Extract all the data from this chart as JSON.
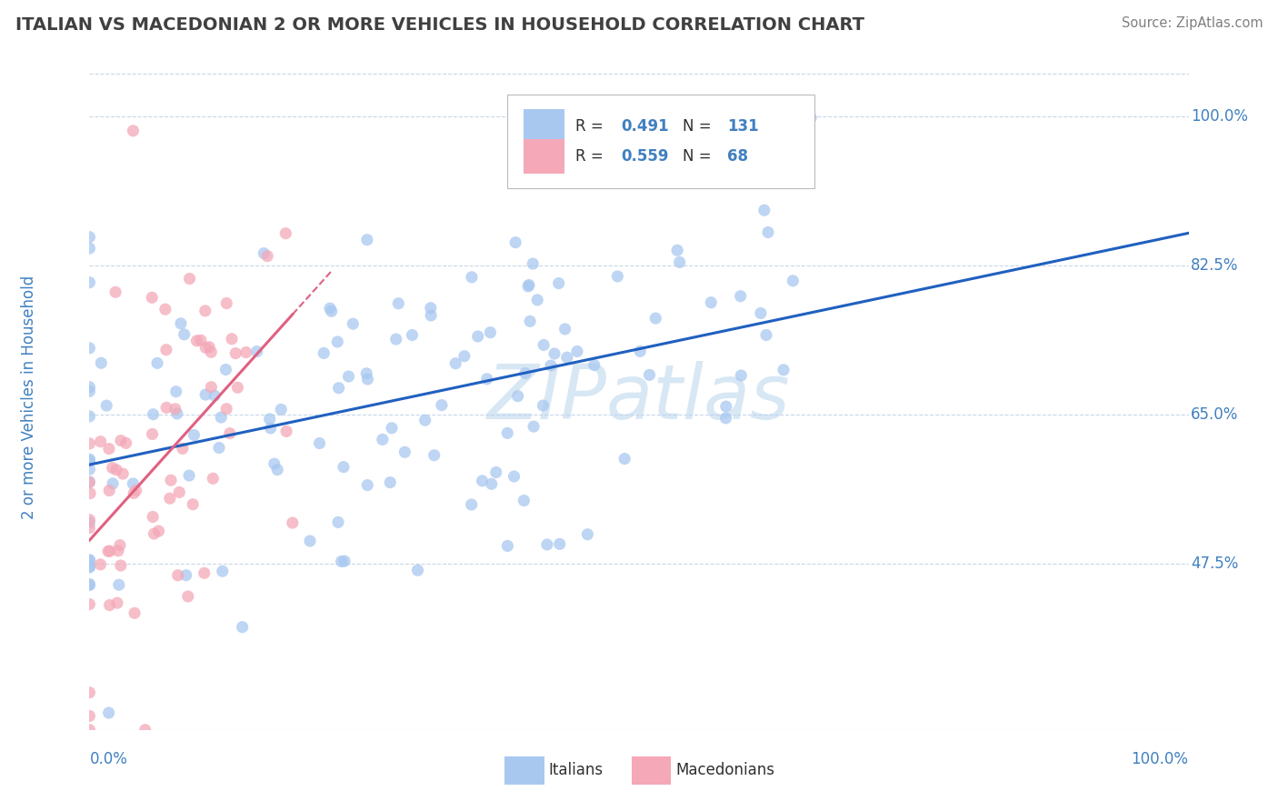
{
  "title": "ITALIAN VS MACEDONIAN 2 OR MORE VEHICLES IN HOUSEHOLD CORRELATION CHART",
  "source_text": "Source: ZipAtlas.com",
  "ylabel": "2 or more Vehicles in Household",
  "xlim": [
    0.0,
    1.0
  ],
  "ylim": [
    0.28,
    1.06
  ],
  "yticks": [
    0.475,
    0.65,
    0.825,
    1.0
  ],
  "ytick_labels": [
    "47.5%",
    "65.0%",
    "82.5%",
    "100.0%"
  ],
  "xtick_labels": [
    "0.0%",
    "100.0%"
  ],
  "italian_color": "#a8c8f0",
  "macedonian_color": "#f4a8b8",
  "italian_line_color": "#2060c0",
  "macedonian_line_color": "#e06080",
  "italian_R": 0.491,
  "italian_N": 131,
  "macedonian_R": 0.559,
  "macedonian_N": 68,
  "grid_color": "#c8d8e8",
  "watermark": "ZIPatlas",
  "watermark_color": "#b8d4ec",
  "title_color": "#404040",
  "tick_label_color": "#4080c0",
  "legend_text_color": "#303030",
  "legend_value_color": "#4080c0",
  "background_color": "#ffffff",
  "source_color": "#808080"
}
